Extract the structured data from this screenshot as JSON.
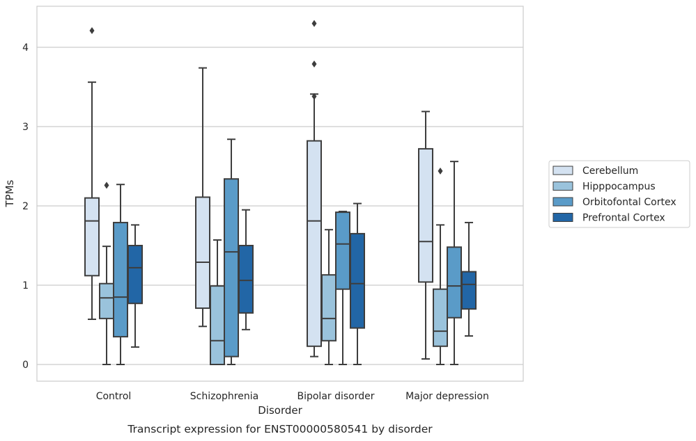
{
  "chart_data": {
    "type": "box",
    "title": "Transcript expression for ENST00000580541 by disorder",
    "xlabel": "Disorder",
    "ylabel": "TPMs",
    "ylim": [
      -0.2,
      4.55
    ],
    "yticks": [
      0,
      1,
      2,
      3,
      4
    ],
    "grid": true,
    "legend_position": "right",
    "categories": [
      "Control",
      "Schizophrenia",
      "Bipolar disorder",
      "Major depression"
    ],
    "series": [
      {
        "name": "Cerebellum",
        "color": "#d4e2f1",
        "boxes": [
          {
            "whisker_low": 0.57,
            "q1": 1.12,
            "median": 1.81,
            "q3": 2.1,
            "whisker_high": 3.56,
            "outliers": [
              4.21
            ]
          },
          {
            "whisker_low": 0.48,
            "q1": 0.71,
            "median": 1.29,
            "q3": 2.11,
            "whisker_high": 3.74,
            "outliers": []
          },
          {
            "whisker_low": 0.1,
            "q1": 0.23,
            "median": 1.81,
            "q3": 2.82,
            "whisker_high": 3.41,
            "outliers": [
              3.38,
              3.79,
              4.3
            ]
          },
          {
            "whisker_low": 0.07,
            "q1": 1.04,
            "median": 1.55,
            "q3": 2.72,
            "whisker_high": 3.19,
            "outliers": []
          }
        ]
      },
      {
        "name": "Hipppocampus",
        "color": "#9ac3dc",
        "boxes": [
          {
            "whisker_low": 0.0,
            "q1": 0.58,
            "median": 0.84,
            "q3": 1.02,
            "whisker_high": 1.49,
            "outliers": [
              2.26
            ]
          },
          {
            "whisker_low": 0.0,
            "q1": 0.0,
            "median": 0.3,
            "q3": 0.99,
            "whisker_high": 1.57,
            "outliers": []
          },
          {
            "whisker_low": 0.0,
            "q1": 0.3,
            "median": 0.58,
            "q3": 1.13,
            "whisker_high": 1.7,
            "outliers": []
          },
          {
            "whisker_low": 0.0,
            "q1": 0.23,
            "median": 0.42,
            "q3": 0.95,
            "whisker_high": 1.76,
            "outliers": [
              2.44
            ]
          }
        ]
      },
      {
        "name": "Orbitofontal Cortex",
        "color": "#5a9bc8",
        "boxes": [
          {
            "whisker_low": 0.0,
            "q1": 0.35,
            "median": 0.85,
            "q3": 1.79,
            "whisker_high": 2.27,
            "outliers": []
          },
          {
            "whisker_low": 0.0,
            "q1": 0.1,
            "median": 1.42,
            "q3": 2.34,
            "whisker_high": 2.84,
            "outliers": []
          },
          {
            "whisker_low": 0.0,
            "q1": 0.95,
            "median": 1.52,
            "q3": 1.92,
            "whisker_high": 1.93,
            "outliers": []
          },
          {
            "whisker_low": 0.0,
            "q1": 0.59,
            "median": 0.99,
            "q3": 1.48,
            "whisker_high": 2.56,
            "outliers": []
          }
        ]
      },
      {
        "name": "Prefrontal Cortex",
        "color": "#2266a6",
        "boxes": [
          {
            "whisker_low": 0.22,
            "q1": 0.77,
            "median": 1.22,
            "q3": 1.5,
            "whisker_high": 1.76,
            "outliers": []
          },
          {
            "whisker_low": 0.44,
            "q1": 0.65,
            "median": 1.06,
            "q3": 1.5,
            "whisker_high": 1.95,
            "outliers": []
          },
          {
            "whisker_low": 0.0,
            "q1": 0.46,
            "median": 1.02,
            "q3": 1.65,
            "whisker_high": 2.03,
            "outliers": []
          },
          {
            "whisker_low": 0.36,
            "q1": 0.7,
            "median": 1.01,
            "q3": 1.17,
            "whisker_high": 1.79,
            "outliers": []
          }
        ]
      }
    ]
  }
}
